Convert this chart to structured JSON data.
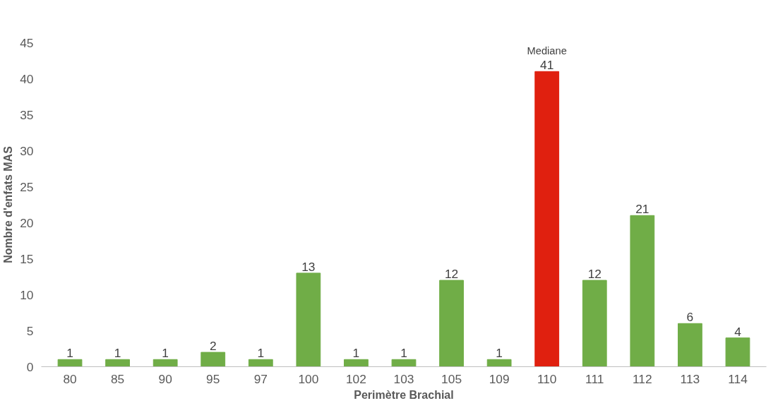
{
  "chart_data": {
    "type": "bar",
    "xlabel": "Perimètre Brachial",
    "ylabel": "Nombre d'enfats MAS",
    "categories": [
      "80",
      "85",
      "90",
      "95",
      "97",
      "100",
      "102",
      "103",
      "105",
      "109",
      "110",
      "111",
      "112",
      "113",
      "114"
    ],
    "values": [
      1,
      1,
      1,
      2,
      1,
      13,
      1,
      1,
      12,
      1,
      41,
      12,
      21,
      6,
      4
    ],
    "colors": [
      "#70ad47",
      "#70ad47",
      "#70ad47",
      "#70ad47",
      "#70ad47",
      "#70ad47",
      "#70ad47",
      "#70ad47",
      "#70ad47",
      "#70ad47",
      "#e0200f",
      "#70ad47",
      "#70ad47",
      "#70ad47",
      "#70ad47"
    ],
    "ylim": [
      0,
      45
    ],
    "yticks": [
      0,
      5,
      10,
      15,
      20,
      25,
      30,
      35,
      40,
      45
    ],
    "data_labels": true,
    "grid": false,
    "annotations": [
      {
        "text": "Mediane",
        "x": "110",
        "y": 41
      }
    ]
  }
}
